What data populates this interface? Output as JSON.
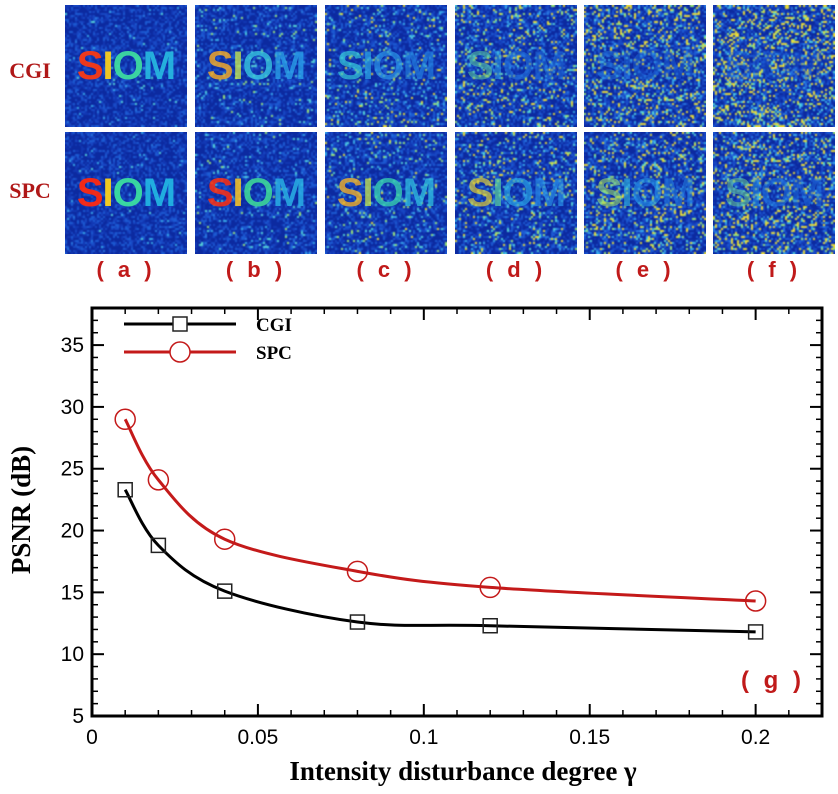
{
  "rows": [
    {
      "label": "CGI",
      "color": "#b01818"
    },
    {
      "label": "SPC",
      "color": "#b01818"
    }
  ],
  "panels": [
    "( a )",
    "( b )",
    "( c )",
    "( d )",
    "( e )",
    "( f )"
  ],
  "tile_text": "SIOM",
  "tile_letter_colors": {
    "CGI": [
      [
        "#ff3a10",
        "#ffd21a",
        "#3fe0a0",
        "#27b8e0"
      ],
      [
        "#ffb020",
        "#c8e650",
        "#38c8e0",
        "#2aa0e8"
      ],
      [
        "#38d0d8",
        "#30b0e8",
        "#2c9ae8",
        "#2480e0"
      ],
      [
        "#60d8a0",
        "#2ea0e8",
        "#2478e0",
        "#2070dc"
      ],
      [
        "#2a88e4",
        "#2476e0",
        "#2070dc",
        "#1e68d8"
      ],
      [
        "#2068da",
        "#1e62d6",
        "#1c5cd4",
        "#1a58d2"
      ]
    ],
    "SPC": [
      [
        "#ff2a10",
        "#ffd41a",
        "#3ce0a0",
        "#22b4e2"
      ],
      [
        "#ff3010",
        "#ffc820",
        "#40e098",
        "#2ab0e4"
      ],
      [
        "#ffb820",
        "#c8e84c",
        "#3ad8b0",
        "#30c0e0"
      ],
      [
        "#e8d430",
        "#60e0a0",
        "#2aa8e6",
        "#2a90e8"
      ],
      [
        "#a0e468",
        "#34c0e0",
        "#2898e8",
        "#2480e2"
      ],
      [
        "#74dc90",
        "#2a9ce8",
        "#247ee2",
        "#2070dc"
      ]
    ]
  },
  "chart_data": {
    "type": "line",
    "x": [
      0.01,
      0.02,
      0.04,
      0.08,
      0.12,
      0.2
    ],
    "series": [
      {
        "name": "CGI",
        "values": [
          23.3,
          18.8,
          15.1,
          12.6,
          12.3,
          11.8
        ],
        "color": "#000000",
        "marker": "square"
      },
      {
        "name": "SPC",
        "values": [
          29.0,
          24.1,
          19.3,
          16.7,
          15.4,
          14.3
        ],
        "color": "#c41a1a",
        "marker": "circle"
      }
    ],
    "xlabel": "Intensity disturbance degree  γ",
    "ylabel": "PSNR (dB)",
    "xlim": [
      0,
      0.22
    ],
    "ylim": [
      5,
      38
    ],
    "x_ticks": [
      0,
      0.05,
      0.1,
      0.15,
      0.2
    ],
    "x_tick_labels": [
      "0",
      "0.05",
      "0.1",
      "0.15",
      "0.2"
    ],
    "y_ticks": [
      5,
      10,
      15,
      20,
      25,
      30,
      35
    ],
    "y_tick_labels": [
      "5",
      "10",
      "15",
      "20",
      "25",
      "30",
      "35"
    ],
    "legend_position": "top-left",
    "grid": false,
    "annotation": "( g )",
    "annotation_color": "#c01a1a"
  }
}
